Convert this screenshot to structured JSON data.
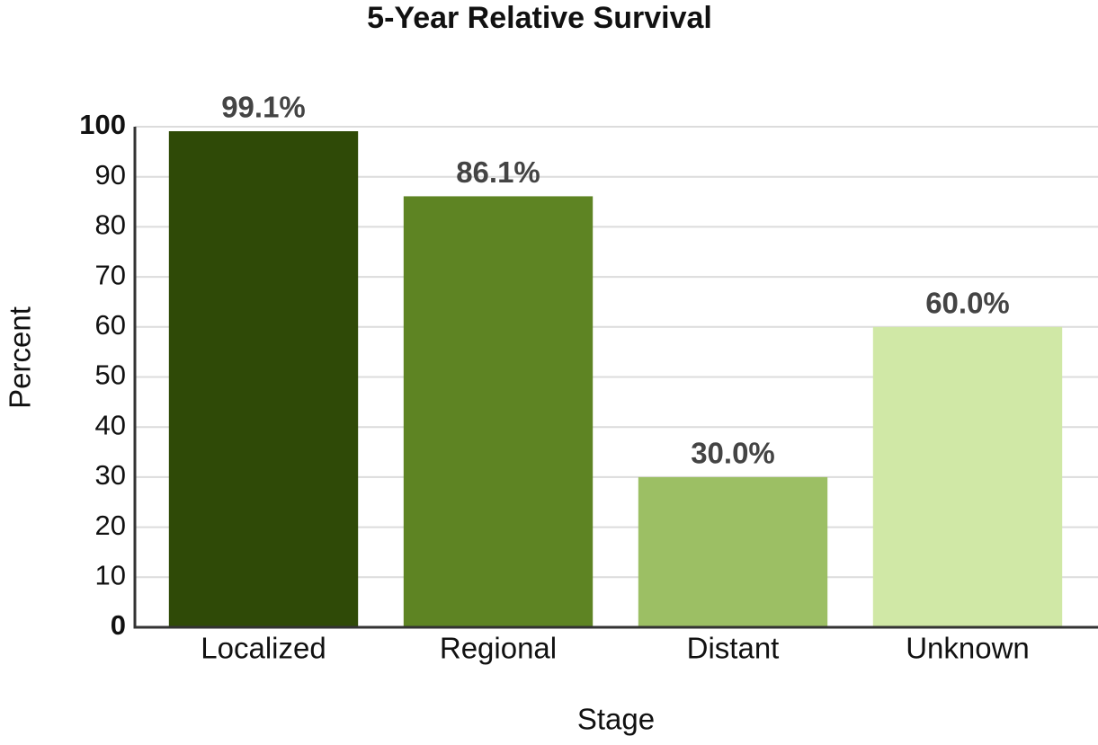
{
  "chart_data": {
    "type": "bar",
    "title": "5-Year Relative Survival",
    "x_label": "Stage",
    "y_label": "Percent",
    "categories": [
      "Localized",
      "Regional",
      "Distant",
      "Unknown"
    ],
    "values": [
      99.1,
      86.1,
      30.0,
      60.0
    ],
    "value_labels": [
      "99.1%",
      "86.1%",
      "30.0%",
      "60.0%"
    ],
    "colors": [
      "#2f4a07",
      "#5e8423",
      "#9cbf64",
      "#d0e8a6"
    ],
    "ylim": [
      0,
      100
    ],
    "yticks": [
      0,
      10,
      20,
      30,
      40,
      50,
      60,
      70,
      80,
      90,
      100
    ],
    "grid": true
  }
}
